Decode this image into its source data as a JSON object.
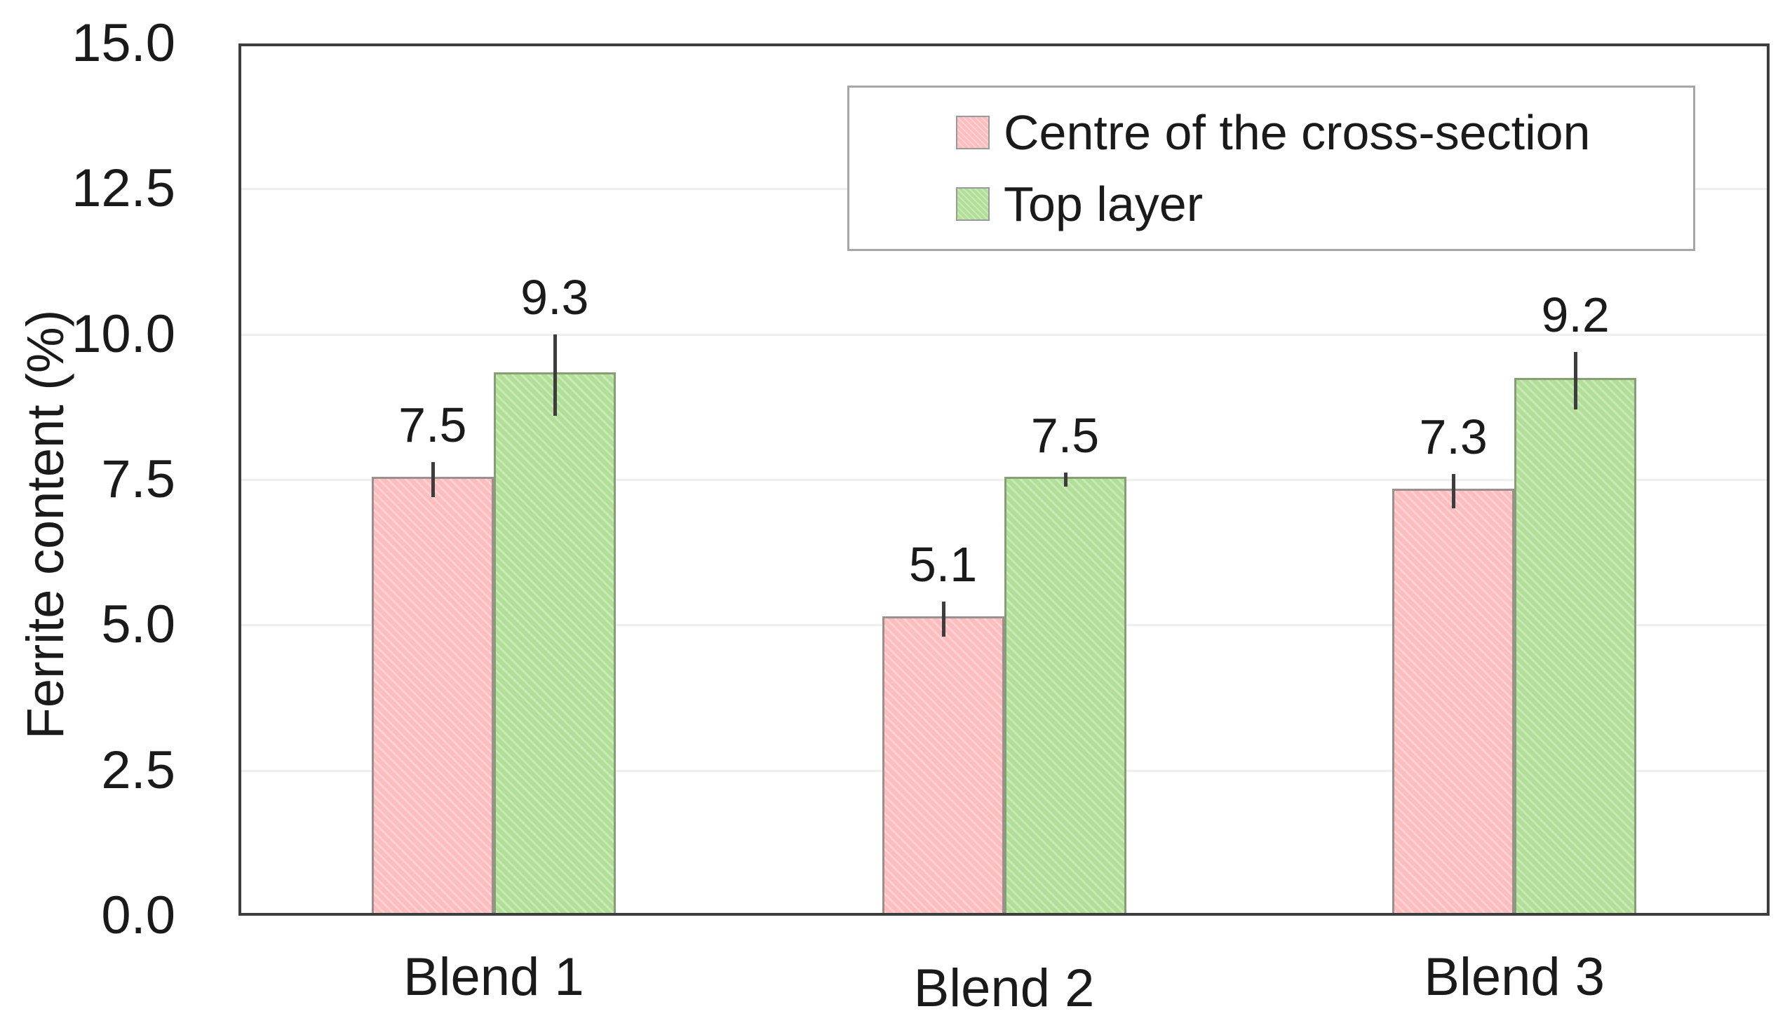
{
  "chart_data": {
    "type": "bar",
    "title": "",
    "xlabel": "",
    "ylabel": "Ferrite content (%)",
    "categories": [
      "Blend 1",
      "Blend 2",
      "Blend 3"
    ],
    "series": [
      {
        "name": "Centre of the cross-section",
        "color": "#fbbdbe",
        "border_color": "#9c8f90",
        "values": [
          7.5,
          5.1,
          7.3
        ],
        "errors": [
          0.3,
          0.3,
          0.3
        ],
        "labels": [
          "7.5",
          "5.1",
          "7.3"
        ]
      },
      {
        "name": "Top layer",
        "color": "#b1df97",
        "border_color": "#879f77",
        "values": [
          9.3,
          7.5,
          9.2
        ],
        "errors": [
          0.7,
          0.12,
          0.5
        ],
        "labels": [
          "9.3",
          "7.5",
          "9.2"
        ]
      }
    ],
    "ylim": [
      0,
      15
    ],
    "ytick_step": 2.5,
    "ytick_labels": [
      "0.0",
      "2.5",
      "5.0",
      "7.5",
      "10.0",
      "12.5",
      "15.0"
    ],
    "grid": true,
    "legend_position": "top-right-inside",
    "error_bar_style": "plain-line-no-caps",
    "colors": {
      "axis": "#3d3d3d",
      "gridline": "#efefef",
      "legend_border": "#a6a6a6",
      "text": "#1a1a1a"
    }
  }
}
